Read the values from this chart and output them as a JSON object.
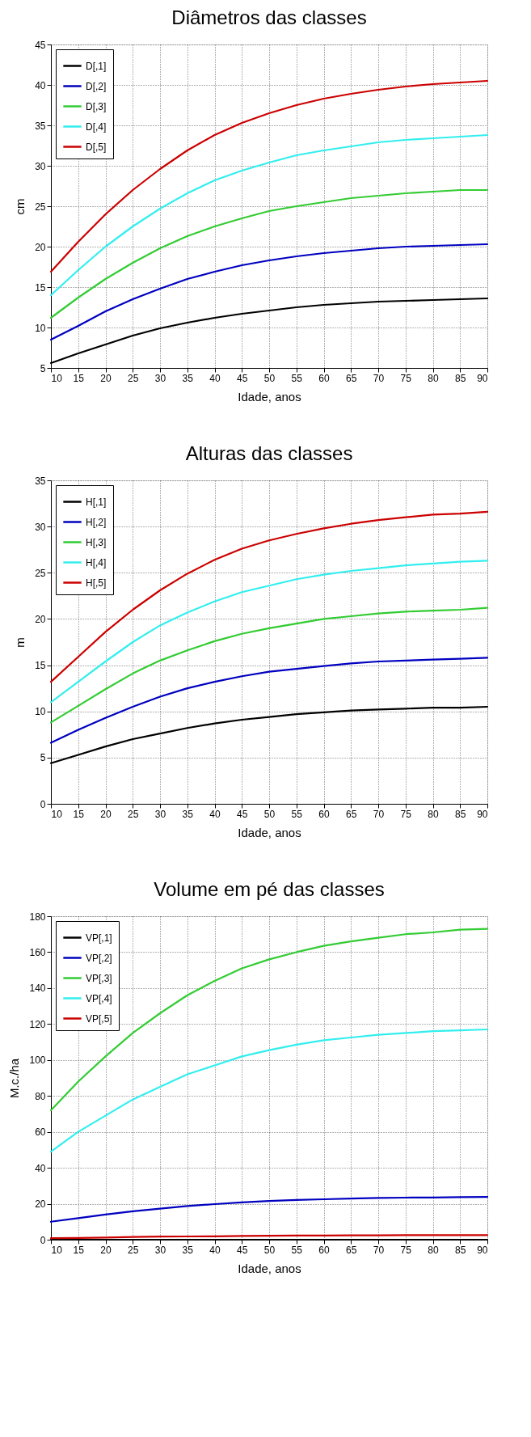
{
  "chart_data": [
    {
      "type": "line",
      "title": "Diâmetros das classes",
      "xlabel": "Idade, anos",
      "ylabel": "cm",
      "x": [
        10,
        15,
        20,
        25,
        30,
        35,
        40,
        45,
        50,
        55,
        60,
        65,
        70,
        75,
        80,
        85,
        90
      ],
      "xlim": [
        10,
        90
      ],
      "xticks": [
        10,
        15,
        20,
        25,
        30,
        35,
        40,
        45,
        50,
        55,
        60,
        65,
        70,
        75,
        80,
        85,
        90
      ],
      "ylim": [
        5,
        45
      ],
      "yticks": [
        5,
        10,
        15,
        20,
        25,
        30,
        35,
        40,
        45
      ],
      "grid": true,
      "legend": "top left",
      "line_style": "solid",
      "marker": "none",
      "series": [
        {
          "name": "D[,1]",
          "color": "#000000",
          "values": [
            5.6,
            6.8,
            7.9,
            9.0,
            9.9,
            10.6,
            11.2,
            11.7,
            12.1,
            12.5,
            12.8,
            13.0,
            13.2,
            13.3,
            13.4,
            13.5,
            13.6
          ]
        },
        {
          "name": "D[,2]",
          "color": "#0000c0",
          "values": [
            8.5,
            10.2,
            12.0,
            13.5,
            14.8,
            16.0,
            16.9,
            17.7,
            18.3,
            18.8,
            19.2,
            19.5,
            19.8,
            20.0,
            20.1,
            20.2,
            20.3
          ]
        },
        {
          "name": "D[,3]",
          "color": "#33cc33",
          "values": [
            11.2,
            13.7,
            16.0,
            18.0,
            19.8,
            21.3,
            22.5,
            23.5,
            24.4,
            25.0,
            25.5,
            26.0,
            26.3,
            26.6,
            26.8,
            27.0,
            27.0
          ]
        },
        {
          "name": "D[,4]",
          "color": "#33eeee",
          "values": [
            14.0,
            17.1,
            20.0,
            22.5,
            24.7,
            26.6,
            28.2,
            29.4,
            30.4,
            31.3,
            31.9,
            32.4,
            32.9,
            33.2,
            33.4,
            33.6,
            33.8
          ]
        },
        {
          "name": "D[,5]",
          "color": "#cc0000",
          "values": [
            16.9,
            20.6,
            24.0,
            27.0,
            29.6,
            31.9,
            33.8,
            35.3,
            36.5,
            37.5,
            38.3,
            38.9,
            39.4,
            39.8,
            40.1,
            40.3,
            40.5
          ]
        }
      ]
    },
    {
      "type": "line",
      "title": "Alturas das classes",
      "xlabel": "Idade, anos",
      "ylabel": "m",
      "x": [
        10,
        15,
        20,
        25,
        30,
        35,
        40,
        45,
        50,
        55,
        60,
        65,
        70,
        75,
        80,
        85,
        90
      ],
      "xlim": [
        10,
        90
      ],
      "xticks": [
        10,
        15,
        20,
        25,
        30,
        35,
        40,
        45,
        50,
        55,
        60,
        65,
        70,
        75,
        80,
        85,
        90
      ],
      "ylim": [
        0,
        35
      ],
      "yticks": [
        0,
        5,
        10,
        15,
        20,
        25,
        30,
        35
      ],
      "grid": true,
      "legend": "top left",
      "line_style": "solid",
      "marker": "none",
      "series": [
        {
          "name": "H[,1]",
          "color": "#000000",
          "values": [
            4.4,
            5.3,
            6.2,
            7.0,
            7.6,
            8.2,
            8.7,
            9.1,
            9.4,
            9.7,
            9.9,
            10.1,
            10.2,
            10.3,
            10.4,
            10.4,
            10.5
          ]
        },
        {
          "name": "H[,2]",
          "color": "#0000c0",
          "values": [
            6.6,
            8.0,
            9.3,
            10.5,
            11.6,
            12.5,
            13.2,
            13.8,
            14.3,
            14.6,
            14.9,
            15.2,
            15.4,
            15.5,
            15.6,
            15.7,
            15.8
          ]
        },
        {
          "name": "H[,3]",
          "color": "#33cc33",
          "values": [
            8.8,
            10.6,
            12.4,
            14.1,
            15.5,
            16.6,
            17.6,
            18.4,
            19.0,
            19.5,
            20.0,
            20.3,
            20.6,
            20.8,
            20.9,
            21.0,
            21.2
          ]
        },
        {
          "name": "H[,4]",
          "color": "#33eeee",
          "values": [
            11.0,
            13.2,
            15.4,
            17.5,
            19.3,
            20.7,
            21.9,
            22.9,
            23.6,
            24.3,
            24.8,
            25.2,
            25.5,
            25.8,
            26.0,
            26.2,
            26.3
          ]
        },
        {
          "name": "H[,5]",
          "color": "#cc0000",
          "values": [
            13.2,
            15.9,
            18.6,
            21.0,
            23.1,
            24.9,
            26.4,
            27.6,
            28.5,
            29.2,
            29.8,
            30.3,
            30.7,
            31.0,
            31.3,
            31.4,
            31.6
          ]
        }
      ]
    },
    {
      "type": "line",
      "title": "Volume em pé das classes",
      "xlabel": "Idade, anos",
      "ylabel": "M.c./ha",
      "x": [
        10,
        15,
        20,
        25,
        30,
        35,
        40,
        45,
        50,
        55,
        60,
        65,
        70,
        75,
        80,
        85,
        90
      ],
      "xlim": [
        10,
        90
      ],
      "xticks": [
        10,
        15,
        20,
        25,
        30,
        35,
        40,
        45,
        50,
        55,
        60,
        65,
        70,
        75,
        80,
        85,
        90
      ],
      "ylim": [
        0,
        180
      ],
      "yticks": [
        0,
        20,
        40,
        60,
        80,
        100,
        120,
        140,
        160,
        180
      ],
      "grid": true,
      "legend": "top left",
      "line_style": "solid",
      "marker": "none",
      "series": [
        {
          "name": "VP[,1]",
          "color": "#000000",
          "values": [
            0,
            0,
            0,
            0,
            0,
            0,
            0,
            0,
            0,
            0,
            0,
            0,
            0,
            0,
            0,
            0,
            0
          ]
        },
        {
          "name": "VP[,2]",
          "color": "#0000c0",
          "values": [
            10,
            12,
            14,
            15.8,
            17.3,
            18.7,
            19.8,
            20.8,
            21.5,
            22.1,
            22.5,
            22.9,
            23.2,
            23.4,
            23.5,
            23.7,
            23.8
          ]
        },
        {
          "name": "VP[,3]",
          "color": "#33cc33",
          "values": [
            72,
            88,
            102,
            115,
            126,
            136,
            144,
            151,
            156,
            160,
            163.5,
            166,
            168,
            170,
            171,
            172.5,
            173
          ]
        },
        {
          "name": "VP[,4]",
          "color": "#33eeee",
          "values": [
            49,
            60,
            69,
            78,
            85,
            92,
            97,
            102,
            105.5,
            108.5,
            111,
            112.5,
            114,
            115,
            116,
            116.5,
            117
          ]
        },
        {
          "name": "VP[,5]",
          "color": "#cc0000",
          "values": [
            0.8,
            1,
            1.2,
            1.5,
            1.7,
            1.8,
            1.9,
            2.1,
            2.2,
            2.3,
            2.3,
            2.4,
            2.4,
            2.5,
            2.5,
            2.5,
            2.5
          ]
        }
      ]
    }
  ]
}
